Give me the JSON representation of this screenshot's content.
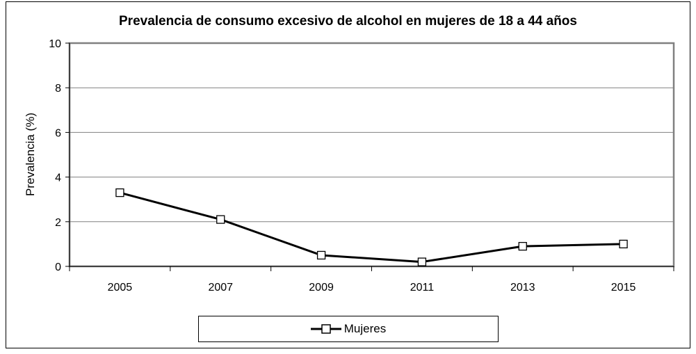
{
  "chart_data": {
    "type": "line",
    "title": "Prevalencia de consumo excesivo de alcohol en mujeres de 18 a 44 años",
    "ylabel": "Prevalencia (%)",
    "xlabel": "",
    "categories": [
      "2005",
      "2007",
      "2009",
      "2011",
      "2013",
      "2015"
    ],
    "series": [
      {
        "name": "Mujeres",
        "values": [
          3.3,
          2.1,
          0.5,
          0.2,
          0.9,
          1.0
        ]
      }
    ],
    "ylim": [
      0,
      10
    ],
    "yticks": [
      "0",
      "2",
      "4",
      "6",
      "8",
      "10"
    ],
    "grid": true,
    "legend": "bottom",
    "colors": {
      "line": "#000000",
      "marker_fill": "#ffffff",
      "grid": "#808080",
      "plot_border": "#808080"
    }
  }
}
